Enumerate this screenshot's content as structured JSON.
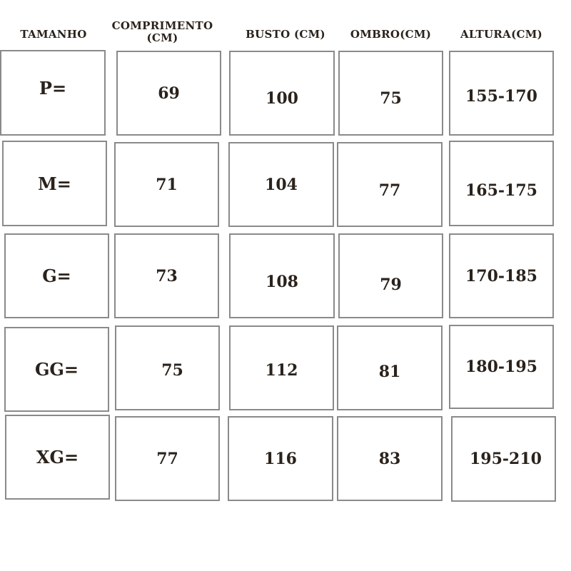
{
  "headers": [
    "TAMANHO",
    "COMPRIMENTO (CM)",
    "BUSTO (CM)",
    "OMBRO(CM)",
    "ALTURA(CM)"
  ],
  "rows": [
    {
      "size": "P=",
      "comprimento": "69",
      "busto": "100",
      "ombro": "75",
      "altura": "155-170"
    },
    {
      "size": "M=",
      "comprimento": "71",
      "busto": "104",
      "ombro": "77",
      "altura": "165-175"
    },
    {
      "size": "G=",
      "comprimento": "73",
      "busto": "108",
      "ombro": "79",
      "altura": "170-185"
    },
    {
      "size": "GG=",
      "comprimento": "75",
      "busto": "112",
      "ombro": "81",
      "altura": "180-195"
    },
    {
      "size": "XG=",
      "comprimento": "77",
      "busto": "116",
      "ombro": "83",
      "altura": "195-210"
    }
  ],
  "colors": {
    "text": "#2a221c",
    "border": "#8a8a8a"
  }
}
